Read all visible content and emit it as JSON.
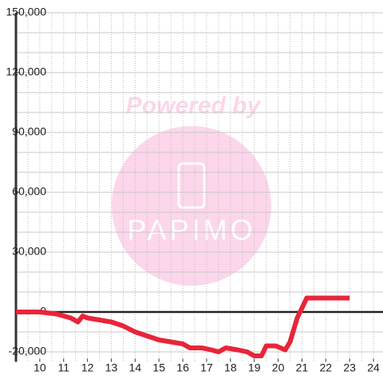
{
  "chart_data": {
    "type": "line",
    "x": [
      9,
      10,
      10.7,
      11,
      11.3,
      11.6,
      11.8,
      12,
      12.5,
      13,
      13.5,
      14,
      14.5,
      15,
      15.5,
      16,
      16.3,
      16.8,
      17.2,
      17.5,
      17.8,
      18.3,
      18.7,
      19,
      19.3,
      19.5,
      19.9,
      20.3,
      20.5,
      20.8,
      21.2,
      22,
      23
    ],
    "series": [
      {
        "name": "value",
        "color": "#e8253a",
        "values": [
          0,
          0,
          -1000,
          -2000,
          -3000,
          -5000,
          -2000,
          -3000,
          -4000,
          -5000,
          -7000,
          -10000,
          -12000,
          -14000,
          -15000,
          -16000,
          -18000,
          -18000,
          -19000,
          -20000,
          -18000,
          -19000,
          -20000,
          -22000,
          -22000,
          -17000,
          -17000,
          -19000,
          -15000,
          -3000,
          7000,
          7000,
          7000
        ]
      }
    ],
    "xlim": [
      9,
      24.4
    ],
    "ylim": [
      -25000,
      150000
    ],
    "xticks": [
      10,
      11,
      12,
      13,
      14,
      15,
      16,
      17,
      18,
      19,
      20,
      21,
      22,
      23,
      24
    ],
    "yticks": [
      {
        "value": -20000,
        "label": "-20,000"
      },
      0,
      {
        "value": 30000,
        "label": "30,000"
      },
      {
        "value": 60000,
        "label": "60,000"
      },
      {
        "value": 90000,
        "label": "90,000"
      },
      {
        "value": 120000,
        "label": "120,000"
      },
      {
        "value": 150000,
        "label": "150,000"
      }
    ],
    "ygrid": [
      -20000,
      -10000,
      10000,
      20000,
      30000,
      40000,
      50000,
      60000,
      70000,
      80000,
      90000,
      100000,
      110000,
      120000,
      130000,
      140000,
      150000
    ],
    "xgrid": [
      9.5,
      10,
      10.5,
      11,
      11.5,
      12,
      12.5,
      13,
      13.5,
      14,
      14.5,
      15,
      15.5,
      16,
      16.5,
      17,
      17.5,
      18,
      18.5,
      19,
      19.5,
      20,
      20.5,
      21,
      21.5,
      22,
      22.5,
      23,
      23.5,
      24
    ],
    "grid": true
  },
  "watermark": {
    "text": "Powered by",
    "logo": "PAPIMO"
  }
}
